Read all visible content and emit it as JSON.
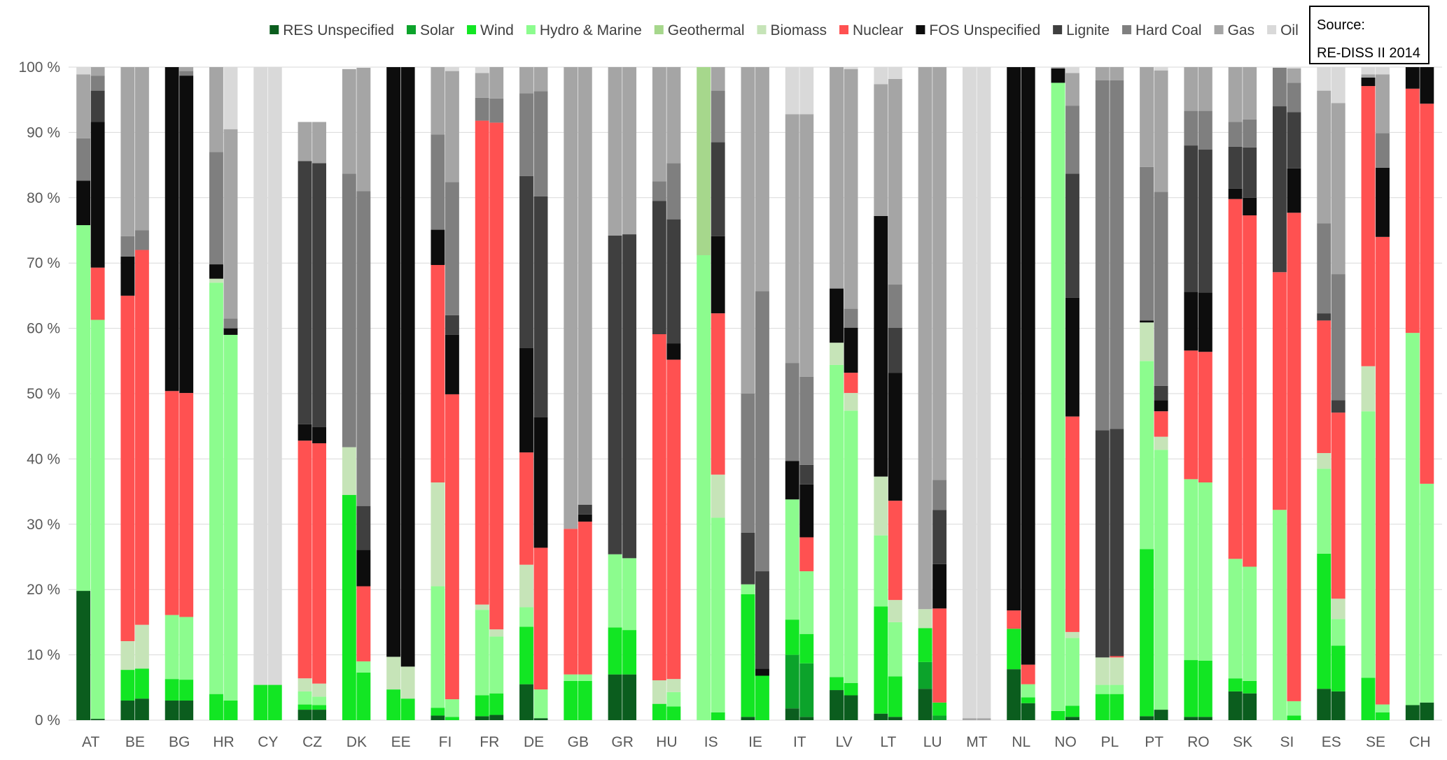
{
  "source": {
    "line1": "Source:",
    "line2": "RE-DISS II 2014"
  },
  "chart_data": {
    "type": "bar",
    "stacked": true,
    "title": "",
    "xlabel": "",
    "ylabel": "",
    "ylim": [
      0,
      100
    ],
    "ytick_suffix": " %",
    "yticks": [
      0,
      10,
      20,
      30,
      40,
      50,
      60,
      70,
      80,
      90,
      100
    ],
    "grid": true,
    "legend_position": "top",
    "categories": [
      "AT",
      "BE",
      "BG",
      "HR",
      "CY",
      "CZ",
      "DK",
      "EE",
      "FI",
      "FR",
      "DE",
      "GB",
      "GR",
      "HU",
      "IS",
      "IE",
      "IT",
      "LV",
      "LT",
      "LU",
      "MT",
      "NL",
      "NO",
      "PL",
      "PT",
      "RO",
      "SK",
      "SI",
      "ES",
      "SE",
      "CH"
    ],
    "bars_per_category": 2,
    "series": [
      {
        "name": "RES Unspecified",
        "color": "#0b5d1e"
      },
      {
        "name": "Solar",
        "color": "#0ca32b"
      },
      {
        "name": "Wind",
        "color": "#12e623"
      },
      {
        "name": "Hydro & Marine",
        "color": "#8cfc8e"
      },
      {
        "name": "Geothermal",
        "color": "#a6d78c"
      },
      {
        "name": "Biomass",
        "color": "#c6e4b8"
      },
      {
        "name": "Nuclear",
        "color": "#ff5151"
      },
      {
        "name": "FOS Unspecified",
        "color": "#0d0d0d"
      },
      {
        "name": "Lignite",
        "color": "#3f3f3f"
      },
      {
        "name": "Hard Coal",
        "color": "#7f7f7f"
      },
      {
        "name": "Gas",
        "color": "#a5a5a5"
      },
      {
        "name": "Oil",
        "color": "#d9d9d9"
      }
    ],
    "values": {
      "AT": [
        [
          19.8,
          0,
          0,
          56,
          0,
          0,
          0,
          6.8,
          0,
          6.5,
          9.8,
          1.1
        ],
        [
          0.2,
          0,
          0,
          61.1,
          0,
          0,
          8,
          22.3,
          4.8,
          2.3,
          1.3,
          0
        ]
      ],
      "BE": [
        [
          3,
          0,
          4.7,
          0,
          0,
          4.4,
          52.9,
          6,
          0,
          3.1,
          25.9,
          0
        ],
        [
          3.3,
          0,
          4.6,
          0,
          0,
          6.7,
          57.4,
          0,
          0,
          3,
          25,
          0
        ]
      ],
      "BG": [
        [
          3,
          0,
          3.3,
          9.8,
          0,
          0,
          34.3,
          49.6,
          0,
          0,
          0,
          0
        ],
        [
          3,
          0,
          3.2,
          9.6,
          0,
          0,
          34.3,
          48.6,
          0,
          0.7,
          0.6,
          0
        ]
      ],
      "HR": [
        [
          0,
          0,
          4,
          63,
          0,
          0.6,
          0,
          2.2,
          0,
          17.2,
          13,
          0
        ],
        [
          0,
          0,
          3,
          56,
          0,
          0,
          0,
          1,
          0,
          1.5,
          29,
          9.5
        ]
      ],
      "CY": [
        [
          0,
          0,
          5.4,
          0,
          0,
          0,
          0,
          0,
          0,
          0,
          0,
          94.6
        ],
        [
          0,
          0,
          5.4,
          0,
          0,
          0,
          0,
          0,
          0,
          0,
          0,
          94.6
        ]
      ],
      "CZ": [
        [
          1.6,
          0,
          0.8,
          2,
          0,
          2,
          36.4,
          2.5,
          40.3,
          0,
          6,
          0
        ],
        [
          1.6,
          0,
          0.7,
          1.3,
          0,
          2,
          36.8,
          2.5,
          40.4,
          0,
          6.3,
          0
        ]
      ],
      "DK": [
        [
          0,
          0,
          34.5,
          0,
          0,
          7.3,
          0,
          0,
          0,
          41.9,
          16,
          0
        ],
        [
          0,
          0,
          7.3,
          1.7,
          0,
          0,
          11.5,
          5.6,
          6.7,
          48.2,
          18.9,
          0
        ]
      ],
      "EE": [
        [
          0,
          0,
          4.7,
          0,
          0,
          5,
          0,
          90.3,
          0,
          0,
          0,
          0
        ],
        [
          0,
          0,
          3.3,
          0,
          0,
          4.9,
          0,
          91.8,
          0,
          0,
          0,
          0
        ]
      ],
      "FI": [
        [
          0.7,
          0,
          1.2,
          18.6,
          0,
          15.9,
          33.3,
          5.4,
          0,
          14.6,
          10.3,
          0
        ],
        [
          0,
          0,
          0.5,
          2.7,
          0,
          0,
          46.7,
          9.1,
          3,
          20.4,
          17,
          0.6
        ]
      ],
      "FR": [
        [
          0.6,
          0,
          3.2,
          13.1,
          0,
          0.8,
          74.1,
          0,
          0,
          3.5,
          3.8,
          0.9
        ],
        [
          0.8,
          0,
          3.3,
          8.7,
          0,
          1.1,
          77.6,
          0,
          0,
          3.7,
          4.8,
          0
        ]
      ],
      "DE": [
        [
          5.5,
          0,
          8.8,
          3,
          0,
          6.5,
          17.2,
          16,
          26.3,
          12.7,
          4,
          0
        ],
        [
          0.3,
          0,
          0,
          4.4,
          0,
          0,
          21.7,
          20,
          33.8,
          16.1,
          3.7,
          0
        ]
      ],
      "GB": [
        [
          0,
          0,
          6,
          1,
          0,
          0,
          22.3,
          0,
          0,
          0,
          70.7,
          0
        ],
        [
          0,
          0,
          6,
          1,
          0,
          0,
          23.4,
          1.1,
          1.5,
          0,
          67,
          0
        ]
      ],
      "GR": [
        [
          7,
          0,
          7.2,
          11.2,
          0,
          0,
          0,
          0,
          48.8,
          0,
          25.8,
          0
        ],
        [
          7,
          0,
          6.8,
          11,
          0,
          0,
          0,
          0,
          49.6,
          0,
          25.6,
          0
        ]
      ],
      "HU": [
        [
          0,
          0,
          2.5,
          0,
          0,
          3.6,
          53,
          0,
          20.4,
          3,
          17.5,
          0
        ],
        [
          0,
          0,
          2.1,
          2.2,
          0,
          2,
          48.9,
          2.5,
          19,
          8.6,
          14.7,
          0
        ]
      ],
      "IS": [
        [
          0,
          0,
          0,
          71.2,
          28.8,
          0,
          0,
          0,
          0,
          0,
          0,
          0
        ],
        [
          0,
          0,
          1.2,
          29.8,
          0,
          6.6,
          24.7,
          11.8,
          14.4,
          7.9,
          3.6,
          0
        ]
      ],
      "IE": [
        [
          0.5,
          0,
          18.8,
          1.5,
          0,
          0,
          0,
          0,
          7.9,
          21.3,
          50,
          0
        ],
        [
          0,
          0,
          6.8,
          0,
          0,
          0,
          0,
          1.1,
          14.9,
          42.9,
          34.3,
          0
        ]
      ],
      "IT": [
        [
          1.8,
          8.2,
          5.4,
          18.4,
          0,
          0,
          0,
          5.9,
          0,
          15,
          38.1,
          7.2
        ],
        [
          0.5,
          8.2,
          4.5,
          9.6,
          0,
          0,
          5.2,
          8.1,
          3,
          13.5,
          40.2,
          7.2
        ]
      ],
      "LV": [
        [
          4.6,
          0,
          2,
          47.8,
          0,
          3.4,
          0,
          8.3,
          0,
          0,
          33.9,
          0
        ],
        [
          3.8,
          0,
          1.9,
          41.7,
          0,
          2.7,
          3.1,
          6.9,
          0,
          2.9,
          36.7,
          0.3
        ]
      ],
      "LT": [
        [
          1,
          0,
          16.4,
          10.9,
          0,
          9,
          0,
          39.9,
          0,
          0,
          20.2,
          2.6
        ],
        [
          0.5,
          0,
          6.2,
          8.3,
          0,
          3.4,
          15.2,
          19.6,
          6.9,
          6.6,
          31.5,
          1.8
        ]
      ],
      "LU": [
        [
          4.8,
          4.1,
          5.2,
          0,
          0,
          2.9,
          0,
          0,
          0,
          0,
          83,
          0
        ],
        [
          0,
          0.7,
          2,
          0,
          0,
          0,
          14.4,
          6.8,
          8.3,
          4.6,
          63.2,
          0
        ]
      ],
      "MT": [
        [
          0,
          0,
          0,
          0,
          0,
          0,
          0,
          0,
          0,
          0,
          0.3,
          99.7
        ],
        [
          0,
          0,
          0,
          0,
          0,
          0,
          0,
          0,
          0,
          0,
          0.3,
          99.7
        ]
      ],
      "NL": [
        [
          7.8,
          0,
          6.2,
          0,
          0,
          0,
          2.8,
          83.2,
          0,
          0,
          0,
          0
        ],
        [
          2.6,
          0,
          0.9,
          2,
          0,
          0,
          3,
          91.5,
          0,
          0,
          0,
          0
        ]
      ],
      "NO": [
        [
          0,
          0,
          1.4,
          96.2,
          0,
          0,
          0,
          2.2,
          0,
          0,
          0.2,
          0
        ],
        [
          0.5,
          0,
          1.7,
          10.4,
          0,
          0.9,
          33,
          18.2,
          19,
          10.4,
          5,
          0.9
        ]
      ],
      "PL": [
        [
          0,
          0,
          4,
          1.4,
          0,
          4.2,
          0,
          0,
          34.8,
          53.6,
          2,
          0
        ],
        [
          0,
          0,
          4,
          1.4,
          0,
          4.2,
          0.2,
          0,
          34.8,
          53.4,
          2,
          0
        ]
      ],
      "PT": [
        [
          0.6,
          0,
          25.6,
          28.8,
          0,
          5.9,
          0,
          0.3,
          0,
          23.5,
          15.3,
          0
        ],
        [
          1.6,
          0,
          0,
          39.8,
          0,
          2,
          3.9,
          1.7,
          2.2,
          29.7,
          18.6,
          0.5
        ]
      ],
      "RO": [
        [
          0.5,
          0,
          8.7,
          27.7,
          0,
          0,
          19.7,
          9,
          22.4,
          5.3,
          6.7,
          0
        ],
        [
          0.5,
          0,
          8.6,
          27.3,
          0,
          0,
          20,
          9.1,
          21.9,
          5.9,
          6.7,
          0
        ]
      ],
      "SK": [
        [
          4.4,
          0,
          2,
          18.3,
          0,
          0,
          55.1,
          1.6,
          6.4,
          3.8,
          8.4,
          0
        ],
        [
          4.1,
          0,
          1.9,
          17.5,
          0,
          0,
          53.8,
          2.7,
          7.7,
          4.3,
          8,
          0
        ]
      ],
      "SI": [
        [
          0,
          0,
          0,
          32.2,
          0,
          0,
          36.4,
          0,
          25.4,
          5.9,
          0,
          0.1
        ],
        [
          0,
          0,
          0.7,
          2.2,
          0,
          0,
          74.8,
          6.8,
          8.6,
          4.5,
          2.2,
          0.2
        ]
      ],
      "ES": [
        [
          4.8,
          0,
          20.7,
          13,
          0,
          2.4,
          20.3,
          0,
          1.1,
          13.8,
          20.3,
          3.6
        ],
        [
          4.4,
          0,
          7,
          4.1,
          0,
          3.1,
          28.5,
          0,
          1.9,
          19.3,
          26.2,
          5.5
        ]
      ],
      "SE": [
        [
          0,
          0,
          6.5,
          40.8,
          0,
          6.9,
          42.9,
          1.3,
          0,
          0,
          0.5,
          1.1
        ],
        [
          0,
          0,
          1.2,
          1.2,
          0,
          0,
          71.6,
          10.6,
          0,
          5.3,
          9,
          1.1
        ]
      ],
      "CH": [
        [
          2.3,
          0,
          0,
          57,
          0,
          0,
          37.4,
          3.3,
          0,
          0,
          0,
          0
        ],
        [
          2.7,
          0,
          0,
          33.5,
          0,
          0,
          58.2,
          5.6,
          0,
          0,
          0,
          0
        ]
      ]
    }
  }
}
